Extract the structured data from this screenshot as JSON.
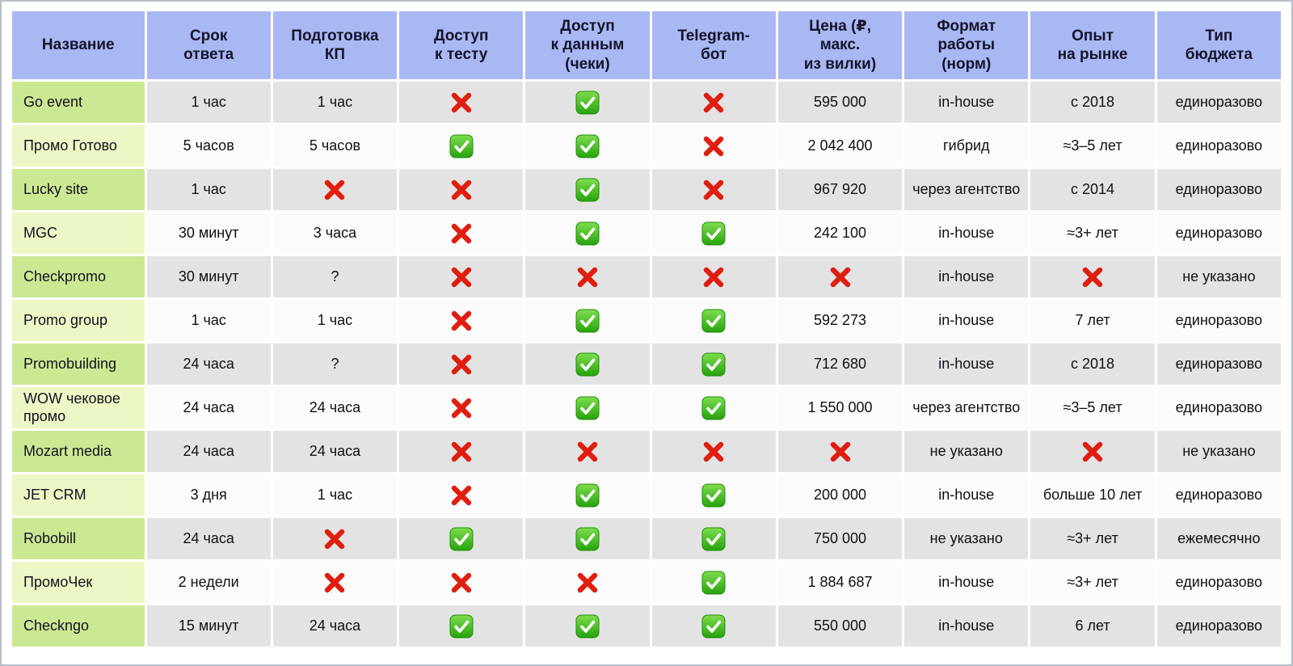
{
  "chart_data": {
    "type": "table",
    "title": "",
    "columns": [
      {
        "label": "Название"
      },
      {
        "label": "Срок\nответа"
      },
      {
        "label": "Подготовка\nКП"
      },
      {
        "label": "Доступ\nк тесту"
      },
      {
        "label": "Доступ\nк данным\n(чеки)"
      },
      {
        "label": "Telegram-\nбот"
      },
      {
        "label": "Цена (₽,\nмакс.\nиз вилки)"
      },
      {
        "label": "Формат\nработы\n(норм)"
      },
      {
        "label": "Опыт\nна рынке"
      },
      {
        "label": "Тип\nбюджета"
      }
    ],
    "rows": [
      {
        "name": "Go event",
        "cells": [
          "1 час",
          "1 час",
          "@cross",
          "@check",
          "@cross",
          "595 000",
          "in-house",
          "с 2018",
          "единоразово"
        ]
      },
      {
        "name": "Промо Готово",
        "cells": [
          "5 часов",
          "5 часов",
          "@check",
          "@check",
          "@cross",
          "2 042 400",
          "гибрид",
          "≈3–5 лет",
          "единоразово"
        ]
      },
      {
        "name": "Lucky site",
        "cells": [
          "1 час",
          "@cross",
          "@cross",
          "@check",
          "@cross",
          "967 920",
          "через агентство",
          "с 2014",
          "единоразово"
        ]
      },
      {
        "name": "MGC",
        "cells": [
          "30 минут",
          "3 часа",
          "@cross",
          "@check",
          "@check",
          "242 100",
          "in-house",
          "≈3+ лет",
          "единоразово"
        ]
      },
      {
        "name": "Checkpromo",
        "cells": [
          "30 минут",
          "?",
          "@cross",
          "@cross",
          "@cross",
          "@cross",
          "in-house",
          "@cross",
          "не указано"
        ]
      },
      {
        "name": "Promo group",
        "cells": [
          "1 час",
          "1 час",
          "@cross",
          "@check",
          "@check",
          "592 273",
          "in-house",
          "7 лет",
          "единоразово"
        ]
      },
      {
        "name": "Promobuilding",
        "cells": [
          "24 часа",
          "?",
          "@cross",
          "@check",
          "@check",
          "712 680",
          "in-house",
          "с 2018",
          "единоразово"
        ]
      },
      {
        "name": "WOW чековое промо",
        "cells": [
          "24 часа",
          "24 часа",
          "@cross",
          "@check",
          "@check",
          "1 550 000",
          "через агентство",
          "≈3–5 лет",
          "единоразово"
        ]
      },
      {
        "name": "Mozart media",
        "cells": [
          "24 часа",
          "24 часа",
          "@cross",
          "@cross",
          "@cross",
          "@cross",
          "не указано",
          "@cross",
          "не указано"
        ]
      },
      {
        "name": "JET CRM",
        "cells": [
          "3 дня",
          "1 час",
          "@cross",
          "@check",
          "@check",
          "200 000",
          "in-house",
          "больше 10 лет",
          "единоразово"
        ]
      },
      {
        "name": "Robobill",
        "cells": [
          "24 часа",
          "@cross",
          "@check",
          "@check",
          "@check",
          "750 000",
          "не указано",
          "≈3+ лет",
          "ежемесячно"
        ]
      },
      {
        "name": "ПромоЧек",
        "cells": [
          "2 недели",
          "@cross",
          "@cross",
          "@cross",
          "@check",
          "1 884 687",
          "in-house",
          "≈3+ лет",
          "единоразово"
        ]
      },
      {
        "name": "Checkngo",
        "cells": [
          "15 минут",
          "24 часа",
          "@check",
          "@check",
          "@check",
          "550 000",
          "in-house",
          "6 лет",
          "единоразово"
        ]
      }
    ],
    "icons": {
      "@check": {
        "name": "check-icon",
        "meaning": "yes / available",
        "color": "#35b412"
      },
      "@cross": {
        "name": "cross-icon",
        "meaning": "no / unavailable",
        "color": "#e01e0f"
      }
    }
  },
  "colors": {
    "header_bg": "#a9b8f3",
    "name_column_odd": "#cde893",
    "name_column_even": "#ebf7c4",
    "row_odd": "#e3e3e3",
    "row_even": "#fbfbfb",
    "check_green": "#35b412",
    "cross_red": "#e01e0f"
  }
}
